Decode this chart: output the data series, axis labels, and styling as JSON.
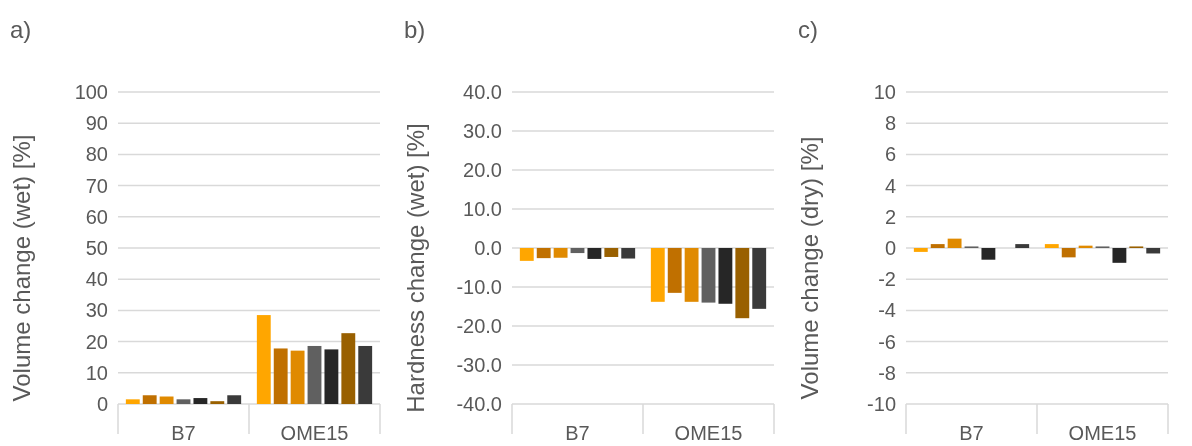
{
  "chart_data": [
    {
      "type": "bar",
      "title": "a)",
      "ylabel": "Volume change (wet) [%]",
      "categories": [
        "B7",
        "OME15"
      ],
      "series": [
        {
          "color": "#ffa600",
          "values": [
            1.5,
            28.5
          ]
        },
        {
          "color": "#c07000",
          "values": [
            2.8,
            17.8
          ]
        },
        {
          "color": "#e08a00",
          "values": [
            2.4,
            17.1
          ]
        },
        {
          "color": "#606060",
          "values": [
            1.5,
            18.6
          ]
        },
        {
          "color": "#262626",
          "values": [
            1.9,
            17.5
          ]
        },
        {
          "color": "#996000",
          "values": [
            0.9,
            22.7
          ]
        },
        {
          "color": "#3a3a3a",
          "values": [
            2.8,
            18.6
          ]
        }
      ],
      "ylim": [
        0,
        100
      ],
      "yticks": [
        0,
        10,
        20,
        30,
        40,
        50,
        60,
        70,
        80,
        90,
        100
      ],
      "grid": "y"
    },
    {
      "type": "bar",
      "title": "b)",
      "ylabel": "Hardness change (wet) [%]",
      "categories": [
        "B7",
        "OME15"
      ],
      "series": [
        {
          "color": "#ffa600",
          "values": [
            -3.3,
            -13.8
          ]
        },
        {
          "color": "#c07000",
          "values": [
            -2.6,
            -11.5
          ]
        },
        {
          "color": "#e08a00",
          "values": [
            -2.5,
            -13.8
          ]
        },
        {
          "color": "#606060",
          "values": [
            -1.3,
            -14.0
          ]
        },
        {
          "color": "#262626",
          "values": [
            -2.8,
            -14.3
          ]
        },
        {
          "color": "#996000",
          "values": [
            -2.3,
            -18.0
          ]
        },
        {
          "color": "#3a3a3a",
          "values": [
            -2.7,
            -15.6
          ]
        }
      ],
      "ylim": [
        -40,
        40
      ],
      "yticks": [
        {
          "value": -40,
          "label": "-40.0"
        },
        {
          "value": -30,
          "label": "-30.0"
        },
        {
          "value": -20,
          "label": "-20.0"
        },
        {
          "value": -10,
          "label": "-10.0"
        },
        {
          "value": 0,
          "label": "0.0"
        },
        {
          "value": 10,
          "label": "10.0"
        },
        {
          "value": 20,
          "label": "20.0"
        },
        {
          "value": 30,
          "label": "30.0"
        },
        {
          "value": 40,
          "label": "40.0"
        }
      ],
      "grid": "y"
    },
    {
      "type": "bar",
      "title": "c)",
      "ylabel": "Volume change (dry) [%]",
      "categories": [
        "B7",
        "OME15"
      ],
      "series": [
        {
          "color": "#ffa600",
          "values": [
            -0.25,
            0.25
          ]
        },
        {
          "color": "#c07000",
          "values": [
            0.25,
            -0.6
          ]
        },
        {
          "color": "#e08a00",
          "values": [
            0.6,
            0.15
          ]
        },
        {
          "color": "#606060",
          "values": [
            0.1,
            0.1
          ]
        },
        {
          "color": "#262626",
          "values": [
            -0.75,
            -0.95
          ]
        },
        {
          "color": "#996000",
          "values": [
            null,
            0.1
          ]
        },
        {
          "color": "#3a3a3a",
          "values": [
            0.25,
            -0.35
          ]
        }
      ],
      "ylim": [
        -10,
        10
      ],
      "yticks": [
        -10,
        -8,
        -6,
        -4,
        -2,
        0,
        2,
        4,
        6,
        8,
        10
      ],
      "grid": "y"
    }
  ]
}
